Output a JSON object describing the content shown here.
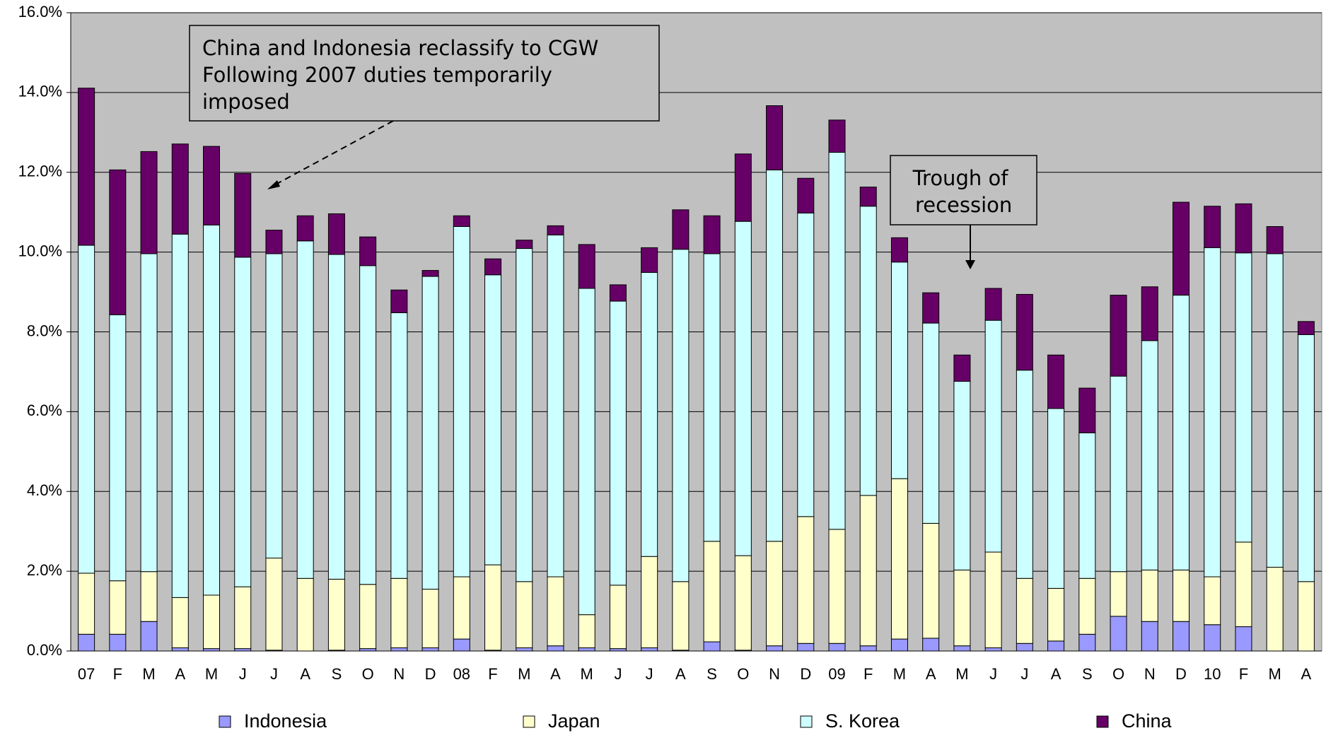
{
  "chart_data": {
    "type": "stacked_bar",
    "categories": [
      "07",
      "F",
      "M",
      "A",
      "M",
      "J",
      "J",
      "A",
      "S",
      "O",
      "N",
      "D",
      "08",
      "F",
      "M",
      "A",
      "M",
      "J",
      "J",
      "A",
      "S",
      "O",
      "N",
      "D",
      "09",
      "F",
      "M",
      "A",
      "M",
      "J",
      "J",
      "A",
      "S",
      "O",
      "N",
      "D",
      "10",
      "F",
      "M",
      "A"
    ],
    "series": [
      {
        "name": "Indonesia",
        "color": "#9999ff",
        "values": [
          0.42,
          0.42,
          0.74,
          0.08,
          0.06,
          0.06,
          0.02,
          0,
          0.02,
          0.06,
          0.08,
          0.08,
          0.3,
          0.02,
          0.08,
          0.13,
          0.08,
          0.06,
          0.08,
          0.02,
          0.23,
          0.02,
          0.13,
          0.19,
          0.19,
          0.13,
          0.3,
          0.32,
          0.13,
          0.08,
          0.19,
          0.25,
          0.42,
          0.87,
          0.74,
          0.74,
          0.66,
          0.61,
          0,
          0
        ]
      },
      {
        "name": "Japan",
        "color": "#ffffcc",
        "values": [
          1.53,
          1.34,
          1.25,
          1.26,
          1.34,
          1.55,
          2.31,
          1.82,
          1.78,
          1.61,
          1.74,
          1.47,
          1.56,
          2.14,
          1.66,
          1.73,
          0.83,
          1.59,
          2.29,
          1.72,
          2.52,
          2.37,
          2.62,
          3.18,
          2.86,
          3.77,
          4.02,
          2.88,
          1.9,
          2.4,
          1.63,
          1.32,
          1.4,
          1.12,
          1.29,
          1.29,
          1.2,
          2.12,
          2.1,
          1.74
        ]
      },
      {
        "name": "S. Korea",
        "color": "#ccffff",
        "values": [
          8.22,
          6.67,
          7.97,
          9.11,
          9.28,
          8.26,
          7.63,
          8.46,
          8.14,
          7.99,
          6.66,
          7.84,
          8.78,
          7.27,
          8.35,
          8.57,
          8.18,
          7.12,
          7.12,
          8.33,
          7.21,
          8.38,
          9.31,
          7.61,
          9.45,
          7.25,
          5.43,
          5.02,
          4.73,
          5.81,
          5.22,
          4.51,
          3.65,
          4.9,
          5.75,
          6.89,
          8.25,
          7.25,
          7.86,
          6.19
        ]
      },
      {
        "name": "China",
        "color": "#660066",
        "values": [
          3.94,
          3.63,
          2.56,
          2.26,
          1.97,
          2.1,
          0.59,
          0.63,
          1.02,
          0.72,
          0.57,
          0.15,
          0.27,
          0.4,
          0.21,
          0.23,
          1.1,
          0.41,
          0.62,
          0.99,
          0.95,
          1.69,
          1.61,
          0.87,
          0.81,
          0.48,
          0.61,
          0.76,
          0.66,
          0.8,
          1.9,
          1.34,
          1.12,
          2.03,
          1.35,
          2.33,
          1.04,
          1.23,
          0.68,
          0.33
        ]
      }
    ],
    "ylim": [
      0,
      16
    ],
    "yticks": [
      {
        "value": 0,
        "label": "0.0%"
      },
      {
        "value": 2,
        "label": "2.0%"
      },
      {
        "value": 4,
        "label": "4.0%"
      },
      {
        "value": 6,
        "label": "6.0%"
      },
      {
        "value": 8,
        "label": "8.0%"
      },
      {
        "value": 10,
        "label": "10.0%"
      },
      {
        "value": 12,
        "label": "12.0%"
      },
      {
        "value": 14,
        "label": "14.0%"
      },
      {
        "value": 16,
        "label": "16.0%"
      }
    ],
    "grid": true,
    "legend": "bottom",
    "annotations": [
      {
        "lines": [
          "China and Indonesia reclassify to CGW",
          "Following 2007 duties temporarily",
          "imposed"
        ]
      },
      {
        "lines": [
          "Trough of",
          " recession"
        ]
      }
    ]
  }
}
